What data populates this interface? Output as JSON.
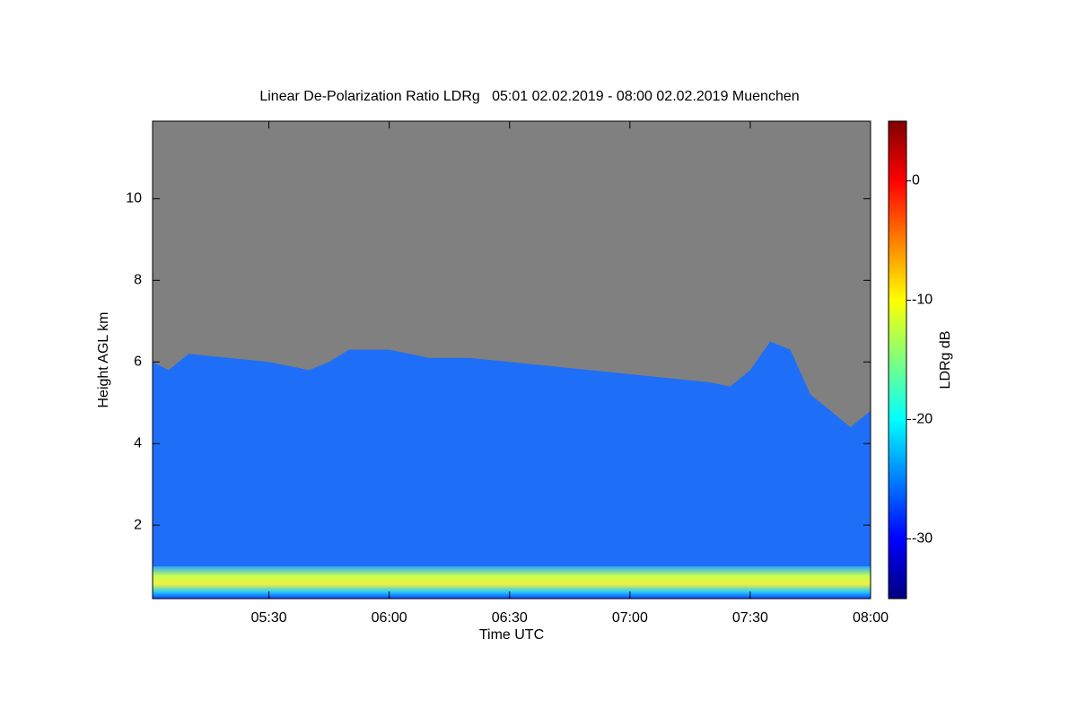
{
  "chart_data": {
    "type": "area",
    "title": "Linear De-Polarization Ratio LDRg   05:01 02.02.2019 - 08:00 02.02.2019 Muenchen",
    "x_label": "Time UTC",
    "y_label": "Height AGL km",
    "x": [
      301,
      305,
      310,
      320,
      330,
      340,
      345,
      350,
      360,
      370,
      380,
      390,
      400,
      410,
      420,
      430,
      440,
      445,
      450,
      455,
      460,
      465,
      470,
      475,
      480
    ],
    "values": [
      6.0,
      5.8,
      6.2,
      6.1,
      6.0,
      5.8,
      6.0,
      6.3,
      6.3,
      6.1,
      6.1,
      6.0,
      5.9,
      5.8,
      5.7,
      5.6,
      5.5,
      5.4,
      5.8,
      6.5,
      6.3,
      5.2,
      4.8,
      4.4,
      4.8
    ],
    "color": "#1f6ef7",
    "background_color": "#808080",
    "xlim": [
      301,
      480
    ],
    "xticks": [
      {
        "value": 330,
        "label": "05:30"
      },
      {
        "value": 360,
        "label": "06:00"
      },
      {
        "value": 390,
        "label": "06:30"
      },
      {
        "value": 420,
        "label": "07:00"
      },
      {
        "value": 450,
        "label": "07:30"
      },
      {
        "value": 480,
        "label": "08:00"
      }
    ],
    "ylim": [
      0.2,
      11.9
    ],
    "yticks": [
      2,
      4,
      6,
      8,
      10
    ],
    "colorbar": {
      "label": "LDRg dB",
      "lim": [
        -35,
        5
      ],
      "ticks": [
        -30,
        -20,
        -10,
        0
      ],
      "colors": [
        "#00007f",
        "#0000ff",
        "#007fff",
        "#00ffff",
        "#7fff7f",
        "#ffff00",
        "#ff7f00",
        "#ff0000",
        "#7f0000"
      ]
    }
  }
}
